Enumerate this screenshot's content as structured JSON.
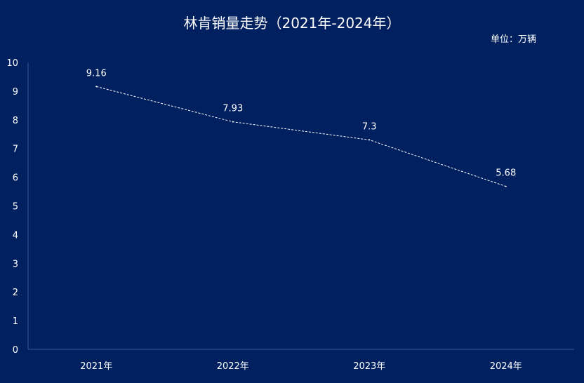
{
  "chart_data": {
    "type": "line",
    "title": "林肯销量走势（2021年-2024年）",
    "unit_label": "单位：万辆",
    "categories": [
      "2021年",
      "2022年",
      "2023年",
      "2024年"
    ],
    "series": [
      {
        "values": [
          9.16,
          7.93,
          7.3,
          5.68
        ]
      }
    ],
    "data_labels": [
      "9.16",
      "7.93",
      "7.3",
      "5.68"
    ],
    "y_ticks": [
      "0",
      "1",
      "2",
      "3",
      "4",
      "5",
      "6",
      "7",
      "8",
      "9",
      "10"
    ],
    "ylim": [
      0,
      10
    ],
    "grid": false,
    "line_style": "dashed",
    "colors": {
      "background": "#002060",
      "line": "#ffffff",
      "axis": "#3a5a9a",
      "text": "#ffffff"
    }
  }
}
